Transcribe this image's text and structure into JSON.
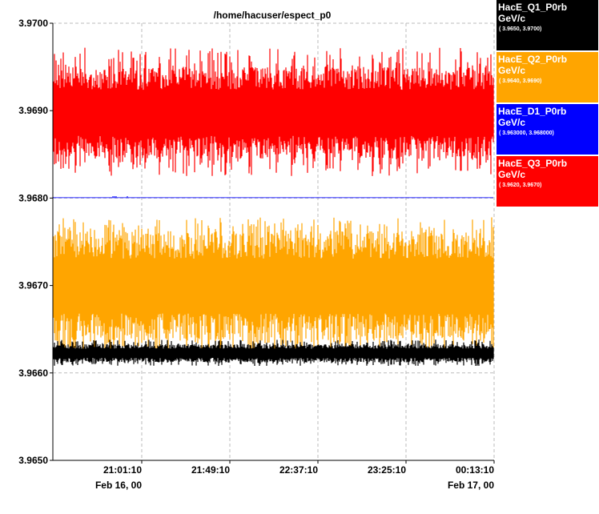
{
  "window_title": "/home/hacuser/espect_p0",
  "chart_data": {
    "type": "line",
    "title": "/home/hacuser/espect_p0",
    "ylim": [
      3.965,
      3.97
    ],
    "y_ticks": [
      "3.9650",
      "3.9660",
      "3.9670",
      "3.9680",
      "3.9690",
      "3.9700"
    ],
    "y_tick_values": [
      3.965,
      3.966,
      3.967,
      3.968,
      3.969,
      3.97
    ],
    "x_ticks": [
      "21:01:10",
      "21:49:10",
      "22:37:10",
      "23:25:10",
      "00:13:10"
    ],
    "x_date_labels": [
      "Feb 16, 00",
      "Feb 17, 00"
    ],
    "grid": true,
    "legend_position": "right",
    "series": [
      {
        "name": "HacE_Q1_P0rb",
        "unit": "GeV/c",
        "range_label": "( 3.9650, 3.9700)",
        "color": "#000000",
        "text_color": "#ffffff",
        "band": [
          3.96612,
          3.96633
        ],
        "spike_range": [
          3.96608,
          3.96638
        ]
      },
      {
        "name": "HacE_Q2_P0rb",
        "unit": "GeV/c",
        "range_label": "( 3.9640, 3.9690)",
        "color": "#ffa500",
        "text_color": "#ffffff",
        "band": [
          3.96637,
          3.96762
        ],
        "spike_range": [
          3.96618,
          3.96778
        ]
      },
      {
        "name": "HacE_D1_P0rb",
        "unit": "GeV/c",
        "range_label": "( 3.963000, 3.968000)",
        "color": "#0000ff",
        "text_color": "#ffffff",
        "band": [
          3.968,
          3.96801
        ],
        "spike_range": [
          3.968,
          3.96802
        ]
      },
      {
        "name": "HacE_Q3_P0rb",
        "unit": "GeV/c",
        "range_label": "( 3.9620, 3.9670)",
        "color": "#ff0000",
        "text_color": "#ffffff",
        "band": [
          3.96845,
          3.9695
        ],
        "spike_range": [
          3.96825,
          3.96972
        ]
      }
    ]
  }
}
